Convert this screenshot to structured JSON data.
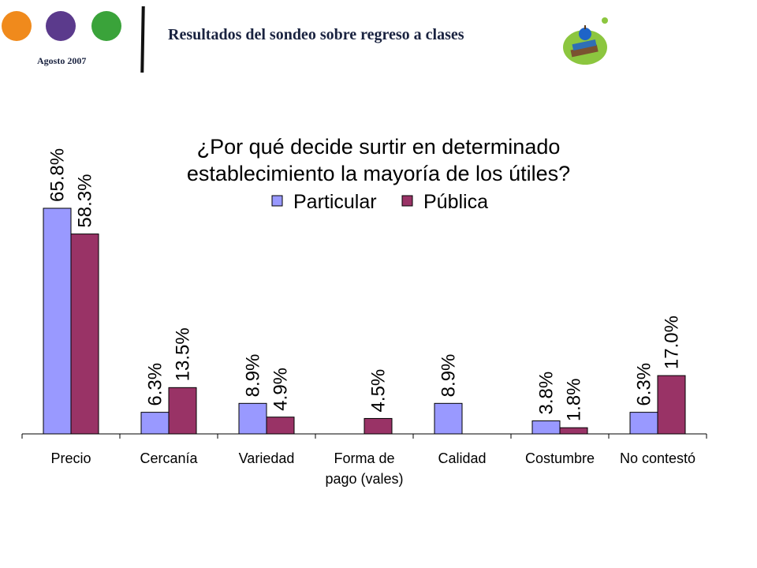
{
  "header": {
    "title": "Resultados del sondeo sobre regreso a clases",
    "date": "Agosto 2007"
  },
  "colors": {
    "particular": "#9999ff",
    "publica": "#993366",
    "logo_orange": "#f08a1c",
    "logo_purple": "#5b3a8c",
    "logo_green": "#3aa33a"
  },
  "chart_data": {
    "type": "bar",
    "title_lines": [
      "¿Por qué decide surtir en determinado",
      "establecimiento la mayoría de los útiles?"
    ],
    "categories": [
      [
        "Precio"
      ],
      [
        "Cercanía"
      ],
      [
        "Variedad"
      ],
      [
        "Forma de",
        "pago (vales)"
      ],
      [
        "Calidad"
      ],
      [
        "Costumbre"
      ],
      [
        "No contestó"
      ]
    ],
    "series": [
      {
        "name": "Particular",
        "values": [
          65.8,
          6.3,
          8.9,
          null,
          8.9,
          3.8,
          6.3
        ],
        "labels": [
          "65.8%",
          "6.3%",
          "8.9%",
          "",
          "8.9%",
          "3.8%",
          "6.3%"
        ]
      },
      {
        "name": "Pública",
        "values": [
          58.3,
          13.5,
          4.9,
          4.5,
          null,
          1.8,
          17.0
        ],
        "labels": [
          "58.3%",
          "13.5%",
          "4.9%",
          "4.5%",
          "",
          "1.8%",
          "17.0%"
        ]
      }
    ],
    "ylim": [
      0,
      70
    ],
    "legend_position": "top",
    "grid": false
  }
}
